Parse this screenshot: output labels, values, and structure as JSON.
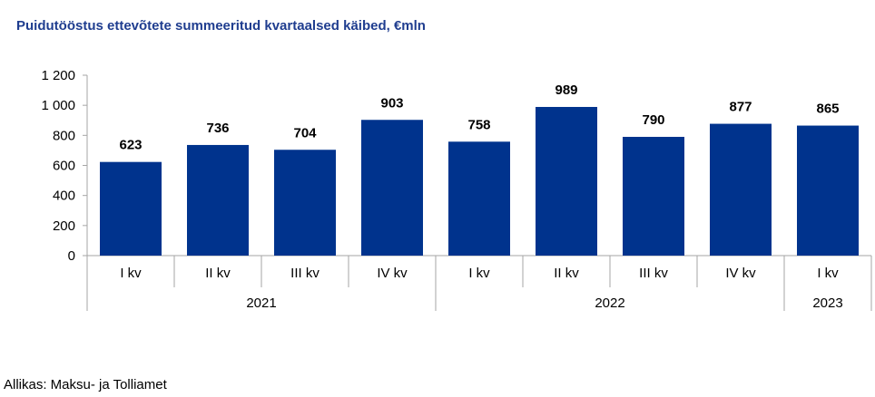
{
  "title": "Puidutööstus ettevõtete summeeritud kvartaalsed käibed, €mln",
  "source": "Allikas: Maksu- ja Tolliamet",
  "colors": {
    "bar": "#00338d",
    "title": "#1f3d8f",
    "axis": "#a6a6a6",
    "text": "#000000"
  },
  "chart_data": {
    "type": "bar",
    "title": "Puidutööstus ettevõtete summeeritud kvartaalsed käibed, €mln",
    "categories": [
      "I kv",
      "II kv",
      "III kv",
      "IV kv",
      "I kv",
      "II kv",
      "III kv",
      "IV kv",
      "I kv"
    ],
    "years": [
      {
        "label": "2021",
        "count": 4
      },
      {
        "label": "2022",
        "count": 4
      },
      {
        "label": "2023",
        "count": 1
      }
    ],
    "values": [
      623,
      736,
      704,
      903,
      758,
      989,
      790,
      877,
      865
    ],
    "value_labels": [
      "623",
      "736",
      "704",
      "903",
      "758",
      "989",
      "790",
      "877",
      "865"
    ],
    "y_ticks": [
      0,
      200,
      400,
      600,
      800,
      1000,
      1200
    ],
    "y_tick_labels": [
      "0",
      "200",
      "400",
      "600",
      "800",
      "1 000",
      "1 200"
    ],
    "ylim": [
      0,
      1200
    ],
    "grid": false,
    "legend": "none"
  }
}
